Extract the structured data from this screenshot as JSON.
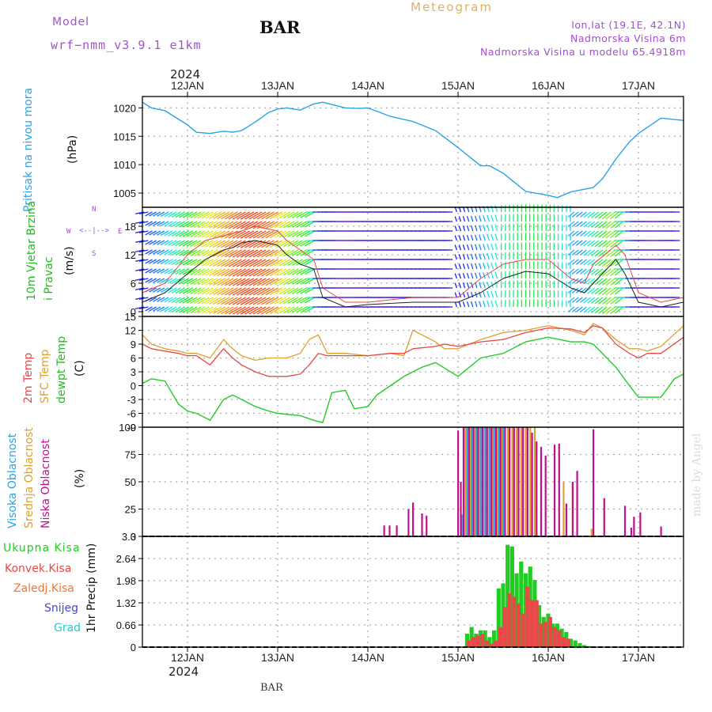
{
  "header": {
    "model_label": "Model",
    "model_name": "wrf−nmm_v3.9.1  e1km",
    "station": "BAR",
    "product": "Meteogram",
    "coords": "lon,lat (19.1E, 42.1N)",
    "elevation": "Nadmorska Visina 6m",
    "model_elevation": "Nadmorska Visina u modelu 65.4918m",
    "year_top": "2024",
    "year_bottom": "2024",
    "footer_station": "BAR",
    "watermark": "made by Angel"
  },
  "colors": {
    "pressure": "#29a3e6",
    "temp2m": "#e84848",
    "sfc_temp": "#e0a030",
    "dewpt": "#22cc22",
    "high_cloud": "#29a3e6",
    "mid_cloud": "#e0a030",
    "low_cloud": "#c0108e",
    "total_precip": "#22cc22",
    "conv_precip": "#e84848",
    "freezing_rain": "#f07830",
    "snow": "#4444dd",
    "hail": "#22cccc",
    "header_purple": "#a050d0",
    "header_orange": "#e0b060"
  },
  "chart_data": [
    {
      "type": "line",
      "panel": "pressure",
      "ylabel_title": "Pritisak na nivou mora",
      "ylabel_units": "(hPa)",
      "ylim": [
        1002.5,
        1022
      ],
      "yticks": [
        1005,
        1010,
        1015,
        1020
      ],
      "grid": true,
      "x_day_labels": [
        "12JAN",
        "13JAN",
        "14JAN",
        "15JAN",
        "16JAN",
        "17JAN"
      ],
      "x_range_days": [
        11.5,
        17.5
      ],
      "series": [
        {
          "x": [
            11.5,
            11.6,
            11.75,
            11.85,
            12.0,
            12.1,
            12.25,
            12.4,
            12.5,
            12.6,
            12.75,
            12.9,
            13.0,
            13.1,
            13.25,
            13.4,
            13.5,
            13.75,
            13.9,
            14.0,
            14.25,
            14.5,
            14.75,
            15.0,
            15.25,
            15.35,
            15.5,
            15.75,
            16.0,
            16.1,
            16.25,
            16.5,
            16.6,
            16.75,
            16.9,
            17.0,
            17.25,
            17.5
          ],
          "y": [
            1021.0,
            1020.0,
            1019.5,
            1018.5,
            1017.0,
            1015.7,
            1015.5,
            1015.9,
            1015.7,
            1016.0,
            1017.5,
            1019.2,
            1019.8,
            1020.0,
            1019.6,
            1020.7,
            1021.0,
            1020.0,
            1019.9,
            1020.0,
            1018.5,
            1017.6,
            1016.0,
            1013.0,
            1009.8,
            1009.8,
            1008.5,
            1005.3,
            1004.6,
            1004.2,
            1005.2,
            1006.0,
            1007.5,
            1011.0,
            1014.0,
            1015.5,
            1018.2,
            1017.8
          ]
        }
      ]
    },
    {
      "type": "line",
      "panel": "wind",
      "ylabel_title": "10m Vjetar Brzina i Pravac",
      "ylabel_units": "(m/s)",
      "compass": [
        "N",
        "W",
        "E",
        "S"
      ],
      "ylim": [
        -1,
        22
      ],
      "yticks": [
        0,
        6,
        12,
        18
      ],
      "grid": true,
      "series": [
        {
          "name": "wind speed",
          "x": [
            11.5,
            11.75,
            12.0,
            12.2,
            12.4,
            12.5,
            12.6,
            12.75,
            13.0,
            13.1,
            13.25,
            13.4,
            13.5,
            13.75,
            14.0,
            14.5,
            15.0,
            15.25,
            15.5,
            15.75,
            16.0,
            16.25,
            16.4,
            16.5,
            16.75,
            16.85,
            17.0,
            17.25,
            17.5
          ],
          "y": [
            2,
            4,
            8,
            11,
            13,
            13.5,
            14.5,
            15,
            14,
            12,
            10,
            9,
            3,
            1,
            1.5,
            2,
            2,
            4,
            7,
            8.5,
            8,
            5,
            4,
            6,
            11,
            8,
            2,
            1,
            2
          ]
        },
        {
          "name": "gust",
          "x": [
            11.5,
            11.75,
            12.0,
            12.2,
            12.4,
            12.5,
            12.6,
            12.75,
            13.0,
            13.1,
            13.25,
            13.4,
            13.5,
            13.75,
            14.0,
            14.5,
            15.0,
            15.25,
            15.5,
            15.75,
            16.0,
            16.25,
            16.4,
            16.5,
            16.75,
            16.85,
            17.0,
            17.25,
            17.5
          ],
          "y": [
            4,
            6,
            12,
            15,
            16,
            16.5,
            17,
            18,
            17,
            15,
            13,
            11,
            5,
            2,
            2,
            3,
            3,
            7,
            10,
            11,
            11,
            7,
            6,
            10,
            14,
            12,
            4,
            2,
            3
          ]
        }
      ]
    },
    {
      "type": "line",
      "panel": "temperature",
      "ylabels": [
        "2m Temp",
        "SFC Temp",
        "dewpt Temp"
      ],
      "ylabel_units": "(C)",
      "ylim": [
        -9,
        15
      ],
      "yticks": [
        -9,
        -6,
        -3,
        0,
        3,
        6,
        9,
        12,
        15
      ],
      "grid": true,
      "series": [
        {
          "name": "2m Temp",
          "x": [
            11.5,
            11.6,
            11.75,
            11.9,
            12.0,
            12.1,
            12.25,
            12.4,
            12.5,
            12.6,
            12.75,
            12.9,
            13.0,
            13.1,
            13.25,
            13.35,
            13.45,
            13.55,
            13.75,
            14.0,
            14.25,
            14.4,
            14.5,
            14.75,
            14.85,
            15.0,
            15.25,
            15.5,
            15.75,
            16.0,
            16.25,
            16.4,
            16.5,
            16.6,
            16.75,
            16.9,
            17.0,
            17.1,
            17.25,
            17.5
          ],
          "y": [
            9,
            8,
            7.5,
            7,
            6.5,
            6.5,
            4.5,
            8,
            6,
            4.5,
            3,
            2,
            2,
            2,
            2.5,
            4.5,
            7,
            6.5,
            6.5,
            6.5,
            7,
            7,
            8,
            8.5,
            9,
            8.5,
            9.5,
            10,
            11.5,
            12.5,
            12.3,
            11.5,
            13,
            12.5,
            9,
            7,
            6,
            7,
            7,
            10.5
          ]
        },
        {
          "name": "SFC Temp",
          "x": [
            11.5,
            11.6,
            11.75,
            11.9,
            12.0,
            12.1,
            12.25,
            12.4,
            12.5,
            12.6,
            12.75,
            12.9,
            13.0,
            13.1,
            13.25,
            13.35,
            13.45,
            13.55,
            13.75,
            14.0,
            14.25,
            14.4,
            14.5,
            14.6,
            14.75,
            14.85,
            15.0,
            15.25,
            15.5,
            15.75,
            16.0,
            16.25,
            16.4,
            16.5,
            16.6,
            16.75,
            16.9,
            17.0,
            17.1,
            17.25,
            17.5
          ],
          "y": [
            11,
            9,
            8,
            7.5,
            7,
            7,
            6,
            10,
            8,
            6.5,
            5.5,
            6,
            6,
            6,
            7,
            10,
            11,
            7,
            7,
            6.5,
            7,
            6.5,
            12,
            11,
            9.5,
            8,
            8,
            10,
            11.5,
            12,
            13,
            12,
            11,
            13.5,
            12.5,
            10,
            8,
            8,
            7.5,
            8.5,
            13
          ]
        },
        {
          "name": "dewpt Temp",
          "x": [
            11.5,
            11.6,
            11.75,
            11.9,
            12.0,
            12.1,
            12.25,
            12.4,
            12.5,
            12.6,
            12.75,
            12.9,
            13.0,
            13.25,
            13.4,
            13.5,
            13.6,
            13.75,
            13.85,
            14.0,
            14.1,
            14.25,
            14.4,
            14.5,
            14.6,
            14.75,
            15.0,
            15.25,
            15.5,
            15.75,
            16.0,
            16.25,
            16.4,
            16.5,
            16.75,
            16.9,
            17.0,
            17.1,
            17.25,
            17.4,
            17.5
          ],
          "y": [
            0.5,
            1.5,
            1,
            -4,
            -5.5,
            -6,
            -7.5,
            -3,
            -2,
            -3,
            -4.5,
            -5.5,
            -6,
            -6.5,
            -7.5,
            -8,
            -1.5,
            -1,
            -5,
            -4.5,
            -2,
            0,
            2,
            3,
            4,
            5,
            2,
            6,
            7,
            9.5,
            10.5,
            9.5,
            9.5,
            9,
            4,
            0,
            -2.5,
            -2.5,
            -2.5,
            1.5,
            2.5
          ]
        }
      ]
    },
    {
      "type": "bar",
      "panel": "cloud",
      "ylabels": [
        "Visoka Oblacnost",
        "Srednja Oblacnost",
        "Niska Oblacnost"
      ],
      "ylabel_units": "(%)",
      "ylim": [
        0,
        100
      ],
      "yticks": [
        0,
        25,
        50,
        75,
        100
      ],
      "grid": true,
      "series": [
        {
          "name": "Visoka Oblacnost",
          "x": [
            15.04,
            15.1,
            15.15,
            15.2,
            15.25,
            15.3,
            15.35,
            15.4,
            15.45,
            15.5
          ],
          "y": [
            20,
            100,
            100,
            100,
            100,
            100,
            100,
            100,
            100,
            100
          ]
        },
        {
          "name": "Srednja Oblacnost",
          "x": [
            15.08,
            15.13,
            15.18,
            15.23,
            15.28,
            15.33,
            15.38,
            15.43,
            15.48,
            15.55,
            15.6,
            15.65,
            15.7,
            15.75,
            15.8,
            15.85,
            16.17,
            16.48
          ],
          "y": [
            100,
            100,
            100,
            100,
            100,
            100,
            100,
            100,
            100,
            100,
            100,
            100,
            100,
            100,
            100,
            100,
            50,
            7
          ]
        },
        {
          "name": "Niska Oblacnost",
          "x": [
            14.18,
            14.24,
            14.32,
            14.45,
            14.5,
            14.6,
            14.65,
            15.0,
            15.03,
            15.06,
            15.12,
            15.17,
            15.22,
            15.27,
            15.32,
            15.37,
            15.42,
            15.47,
            15.52,
            15.57,
            15.62,
            15.67,
            15.72,
            15.77,
            15.82,
            15.87,
            15.92,
            15.97,
            16.07,
            16.12,
            16.2,
            16.27,
            16.32,
            16.42,
            16.5,
            16.62,
            16.85,
            16.92,
            16.95,
            17.02,
            17.25
          ],
          "y": [
            10,
            10,
            10,
            25,
            31,
            21,
            19,
            97,
            50,
            100,
            100,
            100,
            100,
            100,
            100,
            100,
            100,
            100,
            100,
            100,
            100,
            100,
            100,
            100,
            95,
            87,
            82,
            74,
            84,
            85,
            30,
            50,
            60,
            0,
            98,
            35,
            28,
            8,
            18,
            22,
            9
          ]
        }
      ]
    },
    {
      "type": "bar",
      "panel": "precipitation",
      "ylabels": [
        "Ukupna Kisa",
        "Konvek.Kisa",
        "Zaledj.Kisa",
        "Snijeg",
        "Grad"
      ],
      "ylabel_title": "1hr Precip (mm)",
      "ylim": [
        0,
        3.3
      ],
      "yticks": [
        0,
        0.66,
        1.32,
        1.98,
        2.64,
        3.3
      ],
      "grid": true,
      "series": [
        {
          "name": "Ukupna Kisa",
          "x": [
            15.1,
            15.15,
            15.2,
            15.25,
            15.3,
            15.35,
            15.4,
            15.45,
            15.5,
            15.55,
            15.6,
            15.65,
            15.7,
            15.75,
            15.8,
            15.85,
            15.9,
            15.95,
            16.0,
            16.05,
            16.1,
            16.15,
            16.2,
            16.25,
            16.3,
            16.35,
            16.4,
            16.45
          ],
          "y": [
            0.4,
            0.6,
            0.4,
            0.5,
            0.5,
            0.3,
            0.5,
            1.75,
            1.9,
            3.05,
            3.0,
            2.2,
            2.55,
            2.2,
            2.4,
            2.0,
            1.25,
            0.9,
            1.0,
            0.7,
            0.7,
            0.55,
            0.45,
            0.25,
            0.2,
            0.12,
            0.06,
            0.03
          ]
        },
        {
          "name": "Konvek.Kisa",
          "x": [
            15.12,
            15.17,
            15.22,
            15.27,
            15.32,
            15.37,
            15.42,
            15.47,
            15.52,
            15.57,
            15.62,
            15.67,
            15.72,
            15.77,
            15.82,
            15.87,
            15.92,
            15.97,
            16.02,
            16.07,
            16.12,
            16.17,
            16.22
          ],
          "y": [
            0.2,
            0.3,
            0.35,
            0.4,
            0.2,
            0.1,
            0.2,
            0.6,
            1.2,
            1.6,
            1.5,
            1.3,
            1.0,
            1.8,
            1.4,
            1.4,
            0.7,
            0.75,
            0.9,
            0.6,
            0.5,
            0.3,
            0.25
          ]
        }
      ]
    }
  ]
}
